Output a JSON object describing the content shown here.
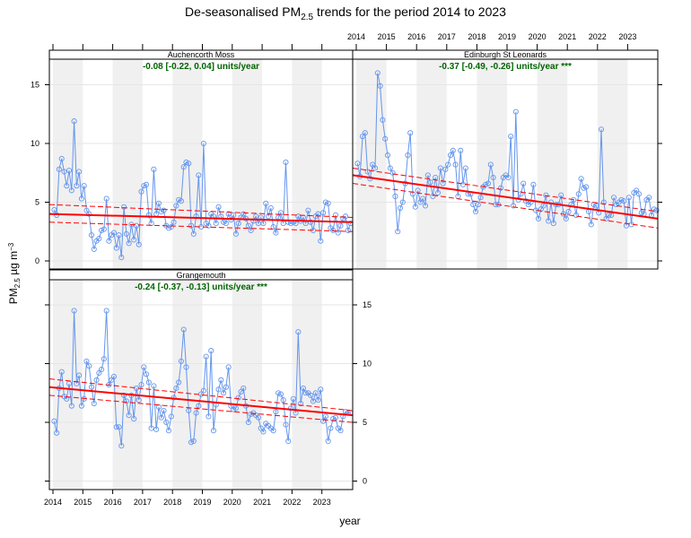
{
  "chart_data": {
    "type": "line",
    "title": "De-seasonalised PM2.5 trends for the period 2014 to 2023",
    "title_parts": {
      "main": "De-seasonalised PM",
      "sub": "2.5",
      "rest": " trends for the period 2014 to 2023"
    },
    "xlabel": "year",
    "ylabel_parts": {
      "main": "PM",
      "sub": "2.5",
      "mid": " µg m",
      "sup": "−3"
    },
    "x_ticks": [
      "2014",
      "2015",
      "2016",
      "2017",
      "2018",
      "2019",
      "2020",
      "2021",
      "2022",
      "2023"
    ],
    "y_ticks": [
      "0",
      "5",
      "10",
      "15"
    ],
    "xlim": [
      2014,
      2024
    ],
    "ylim": [
      -0.7,
      17.3
    ],
    "shaded_years": [
      2014,
      2016,
      2018,
      2020,
      2022
    ],
    "colors": {
      "series": "#6495ED",
      "trend": "#FF0000",
      "trend_label": "#006400",
      "band": "#F0F0F0",
      "grid": "#E6E6E6"
    },
    "panels": [
      {
        "name": "Auchencorth Moss",
        "trend_label": "-0.08 [-0.22, 0.04] units/year",
        "trend": {
          "start": 4.0,
          "end": 3.3
        },
        "trend_upper": {
          "start": 4.8,
          "end": 3.7
        },
        "trend_lower": {
          "start": 3.3,
          "end": 2.5
        },
        "values": [
          4.35,
          3.9,
          7.8,
          8.7,
          7.6,
          6.4,
          7.7,
          6.0,
          11.9,
          6.4,
          7.6,
          5.3,
          6.4,
          4.3,
          4.0,
          2.2,
          1.0,
          1.7,
          1.9,
          2.6,
          2.7,
          5.3,
          1.7,
          2.2,
          2.4,
          1.1,
          2.2,
          0.3,
          4.6,
          2.3,
          1.5,
          3.1,
          1.8,
          3.0,
          1.4,
          5.9,
          6.4,
          6.5,
          3.9,
          3.2,
          7.8,
          4.0,
          4.9,
          4.2,
          4.3,
          3.0,
          2.8,
          2.9,
          3.3,
          4.7,
          5.2,
          5.1,
          8.0,
          8.4,
          8.3,
          3.0,
          2.3,
          3.8,
          7.3,
          2.9,
          10.0,
          3.2,
          3.0,
          4.0,
          3.8,
          3.2,
          4.6,
          3.8,
          3.3,
          3.2,
          4.0,
          3.5,
          3.9,
          2.3,
          3.2,
          3.7,
          4.0,
          3.6,
          3.0,
          2.6,
          3.4,
          3.8,
          3.2,
          3.7,
          3.2,
          4.9,
          3.8,
          4.5,
          2.9,
          2.4,
          3.7,
          4.1,
          3.2,
          8.4,
          3.3,
          3.2,
          3.3,
          3.2,
          3.8,
          3.4,
          3.7,
          3.2,
          4.3,
          3.3,
          2.6,
          3.8,
          4.0,
          1.7,
          4.1,
          5.0,
          4.9,
          2.8,
          2.6,
          3.9,
          2.4,
          3.0,
          3.6,
          3.8,
          2.6,
          3.2
        ]
      },
      {
        "name": "Edinburgh St Leonards",
        "trend_label": "-0.37 [-0.49, -0.26] units/year ***",
        "trend": {
          "start": 7.3,
          "end": 3.6
        },
        "trend_upper": {
          "start": 7.9,
          "end": 4.2
        },
        "trend_lower": {
          "start": 6.6,
          "end": 2.8
        },
        "values": [
          8.3,
          7.2,
          10.6,
          10.9,
          7.6,
          7.0,
          8.2,
          7.9,
          16.0,
          14.9,
          12.0,
          10.4,
          9.0,
          7.9,
          7.5,
          5.5,
          2.5,
          4.5,
          5.0,
          6.6,
          9.0,
          10.9,
          5.7,
          4.6,
          6.0,
          5.0,
          5.3,
          4.7,
          7.3,
          6.7,
          5.5,
          7.1,
          5.8,
          7.9,
          6.6,
          7.8,
          8.2,
          9.0,
          9.4,
          8.2,
          5.5,
          9.4,
          6.5,
          7.9,
          5.7,
          5.7,
          4.8,
          4.2,
          4.8,
          5.4,
          6.3,
          6.5,
          6.6,
          8.2,
          7.1,
          4.8,
          4.8,
          6.2,
          7.1,
          7.3,
          7.1,
          10.6,
          4.7,
          12.7,
          5.2,
          5.7,
          6.6,
          5.1,
          4.8,
          5.0,
          6.5,
          4.3,
          3.6,
          4.4,
          4.7,
          5.6,
          3.4,
          5.0,
          3.2,
          4.8,
          4.8,
          5.6,
          4.0,
          3.6,
          4.2,
          4.8,
          5.2,
          3.9,
          5.7,
          7.0,
          6.2,
          6.3,
          4.2,
          3.1,
          4.8,
          4.7,
          4.1,
          11.2,
          5.0,
          3.6,
          3.9,
          3.9,
          5.4,
          4.8,
          5.0,
          5.2,
          5.1,
          3.0,
          5.4,
          3.1,
          5.8,
          6.0,
          5.7,
          4.1,
          4.0,
          5.2,
          5.4,
          3.9,
          4.4,
          4.3
        ]
      },
      {
        "name": "Grangemouth",
        "trend_label": "-0.24 [-0.37, -0.13] units/year ***",
        "trend": {
          "start": 8.0,
          "end": 5.6
        },
        "trend_upper": {
          "start": 8.7,
          "end": 6.0
        },
        "trend_lower": {
          "start": 7.3,
          "end": 5.0
        },
        "values": [
          5.1,
          4.1,
          7.9,
          9.3,
          7.2,
          7.0,
          8.3,
          6.4,
          14.5,
          8.3,
          9.0,
          6.4,
          7.0,
          10.2,
          9.8,
          8.0,
          6.6,
          8.6,
          9.2,
          9.5,
          10.4,
          14.5,
          8.2,
          8.6,
          8.9,
          4.6,
          4.6,
          3.0,
          7.3,
          6.8,
          5.6,
          7.3,
          5.3,
          7.9,
          6.9,
          8.2,
          9.7,
          9.1,
          8.4,
          4.5,
          8.1,
          4.4,
          6.3,
          5.4,
          6.0,
          5.0,
          4.3,
          5.5,
          7.1,
          7.9,
          8.4,
          10.2,
          12.9,
          9.7,
          6.0,
          3.3,
          3.4,
          5.8,
          6.4,
          7.4,
          7.7,
          10.6,
          5.5,
          11.1,
          4.3,
          6.5,
          7.8,
          8.6,
          7.5,
          8.0,
          9.7,
          6.4,
          6.1,
          6.2,
          7.1,
          7.6,
          7.9,
          6.4,
          5.0,
          5.7,
          5.8,
          5.6,
          5.4,
          4.5,
          4.2,
          4.9,
          4.7,
          4.5,
          4.3,
          5.9,
          7.5,
          7.4,
          6.9,
          4.8,
          3.4,
          6.2,
          7.0,
          5.8,
          12.7,
          6.6,
          7.9,
          7.5,
          7.5,
          7.3,
          6.8,
          7.5,
          6.9,
          7.8,
          5.1,
          5.5,
          3.4,
          4.5,
          5.3,
          5.4,
          4.5,
          4.3,
          5.5,
          5.9,
          5.8,
          5.8
        ]
      }
    ]
  }
}
